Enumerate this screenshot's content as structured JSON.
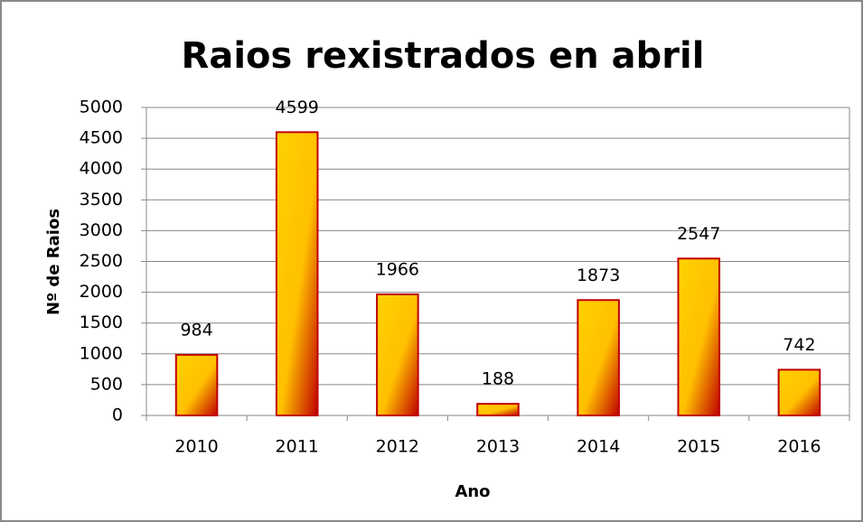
{
  "chart_data": {
    "type": "bar",
    "title": "Raios rexistrados en abril",
    "xlabel": "Ano",
    "ylabel": "Nº de Raios",
    "categories": [
      "2010",
      "2011",
      "2012",
      "2013",
      "2014",
      "2015",
      "2016"
    ],
    "values": [
      984,
      4599,
      1966,
      188,
      1873,
      2547,
      742
    ],
    "color": "#ffc000",
    "edge_color": "#c00000",
    "ylim": [
      0,
      5000
    ],
    "yticks": [
      0,
      500,
      1000,
      1500,
      2000,
      2500,
      3000,
      3500,
      4000,
      4500,
      5000
    ],
    "grid": true
  }
}
